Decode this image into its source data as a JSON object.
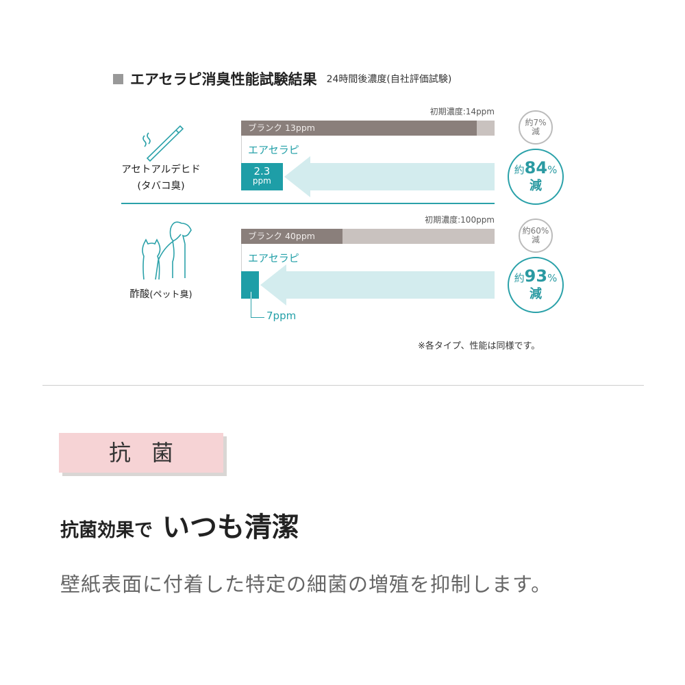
{
  "title": "エアセラピ消臭性能試験結果",
  "subtitle": "24時間後濃度(自社評価試験)",
  "colors": {
    "blank": "#8a7f7b",
    "track": "#c9c2bf",
    "aero": "#1e9ea7",
    "arrow": "#d3ecee",
    "pink": "#f6d3d5"
  },
  "chart_data": {
    "type": "bar",
    "groups": [
      {
        "odor": "アセトアルデヒド",
        "odor_sub": "(タバコ臭)",
        "icon": "cigarette-icon",
        "initial_label": "初期濃度:14ppm",
        "initial": 14,
        "blank_label": "ブランク 13ppm",
        "blank": 13,
        "aero_label": "エアセラピ",
        "aero": 2.3,
        "aero_value_text": "2.3",
        "aero_unit": "ppm",
        "blank_reduction": [
          "約7%",
          "減"
        ],
        "aero_reduction": {
          "pre": "約",
          "num": "84",
          "pct": "%",
          "post": "減"
        }
      },
      {
        "odor": "酢酸",
        "odor_sub": "(ペット臭)",
        "icon": "dog-cat-icon",
        "initial_label": "初期濃度:100ppm",
        "initial": 100,
        "blank_label": "ブランク 40ppm",
        "blank": 40,
        "aero_label": "エアセラピ",
        "aero": 7,
        "aero_value_text": "7ppm",
        "blank_reduction": [
          "約60%",
          "減"
        ],
        "aero_reduction": {
          "pre": "約",
          "num": "93",
          "pct": "%",
          "post": "減"
        }
      }
    ]
  },
  "note": "※各タイプ、性能は同様です。",
  "section": {
    "badge": "抗菌",
    "heading_pre": "抗菌効果で",
    "heading_main": "いつも清潔",
    "body": "壁紙表面に付着した特定の細菌の増殖を抑制します。"
  }
}
